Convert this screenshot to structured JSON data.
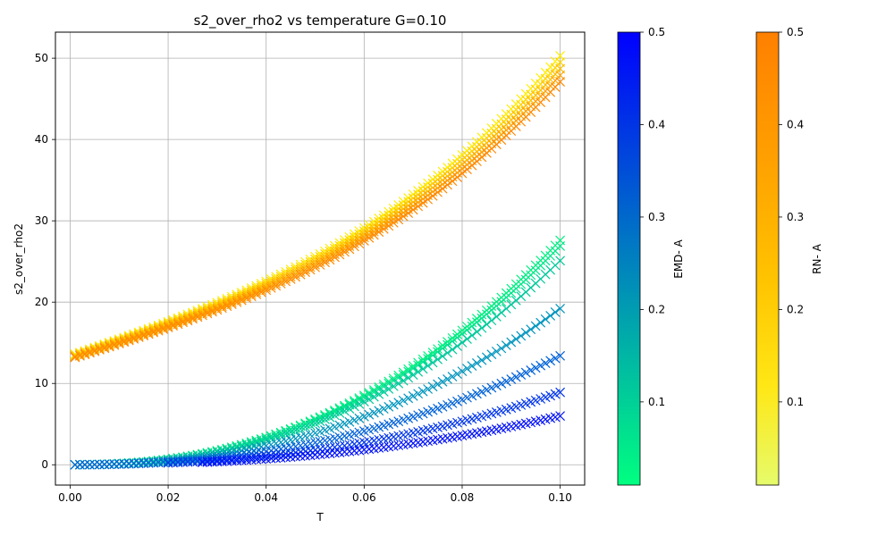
{
  "chart_data": [
    {
      "type": "scatter",
      "title": "s2_over_rho2 vs temperature G=0.10",
      "xlabel": "T",
      "ylabel": "s2_over_rho2",
      "xlim": [
        -0.003,
        0.105
      ],
      "ylim": [
        -2.5,
        53.2
      ],
      "xticks": [
        0.0,
        0.02,
        0.04,
        0.06,
        0.08,
        0.1
      ],
      "xtick_labels": [
        "0.00",
        "0.02",
        "0.04",
        "0.06",
        "0.08",
        "0.10"
      ],
      "yticks": [
        0,
        10,
        20,
        30,
        40,
        50
      ],
      "ytick_labels": [
        "0",
        "10",
        "20",
        "30",
        "40",
        "50"
      ],
      "grid": true,
      "marker": "x",
      "rn_group": {
        "colorbar_label": "RN- A",
        "colorbar_range": [
          0.01,
          0.5
        ],
        "colorbar_ticks": [
          "0.1",
          "0.2",
          "0.3",
          "0.4",
          "0.5"
        ],
        "t_end": [
          0.001,
          0.1
        ],
        "curves": [
          {
            "a": 0.1,
            "color": "#ffee00",
            "y_start": 13.6,
            "y_end": 50.3
          },
          {
            "a": 0.2,
            "color": "#ffd300",
            "y_start": 13.5,
            "y_end": 49.5
          },
          {
            "a": 0.3,
            "color": "#ffbd00",
            "y_start": 13.4,
            "y_end": 48.7
          },
          {
            "a": 0.4,
            "color": "#ffa000",
            "y_start": 13.3,
            "y_end": 47.9
          },
          {
            "a": 0.5,
            "color": "#ff8800",
            "y_start": 13.2,
            "y_end": 47.1
          }
        ]
      },
      "emd_group": {
        "colorbar_label": "EMD- A",
        "colorbar_range": [
          0.01,
          0.5
        ],
        "colorbar_ticks": [
          "0.1",
          "0.2",
          "0.3",
          "0.4",
          "0.5"
        ],
        "t_end": [
          0.001,
          0.1
        ],
        "curves": [
          {
            "a": 0.02,
            "color": "#00f07e",
            "t_start": 0.001,
            "y_end": 27.6
          },
          {
            "a": 0.05,
            "color": "#00e58b",
            "t_start": 0.001,
            "y_end": 26.9
          },
          {
            "a": 0.1,
            "color": "#00c89c",
            "t_start": 0.001,
            "y_end": 25.1
          },
          {
            "a": 0.2,
            "color": "#0095bd",
            "t_start": 0.001,
            "y_end": 19.2
          },
          {
            "a": 0.3,
            "color": "#0062d8",
            "t_start": 0.001,
            "y_end": 13.4
          },
          {
            "a": 0.4,
            "color": "#0035ec",
            "t_start": 0.02,
            "y_end": 8.9
          },
          {
            "a": 0.5,
            "color": "#0010f8",
            "t_start": 0.027,
            "y_end": 6.0
          }
        ]
      }
    }
  ]
}
